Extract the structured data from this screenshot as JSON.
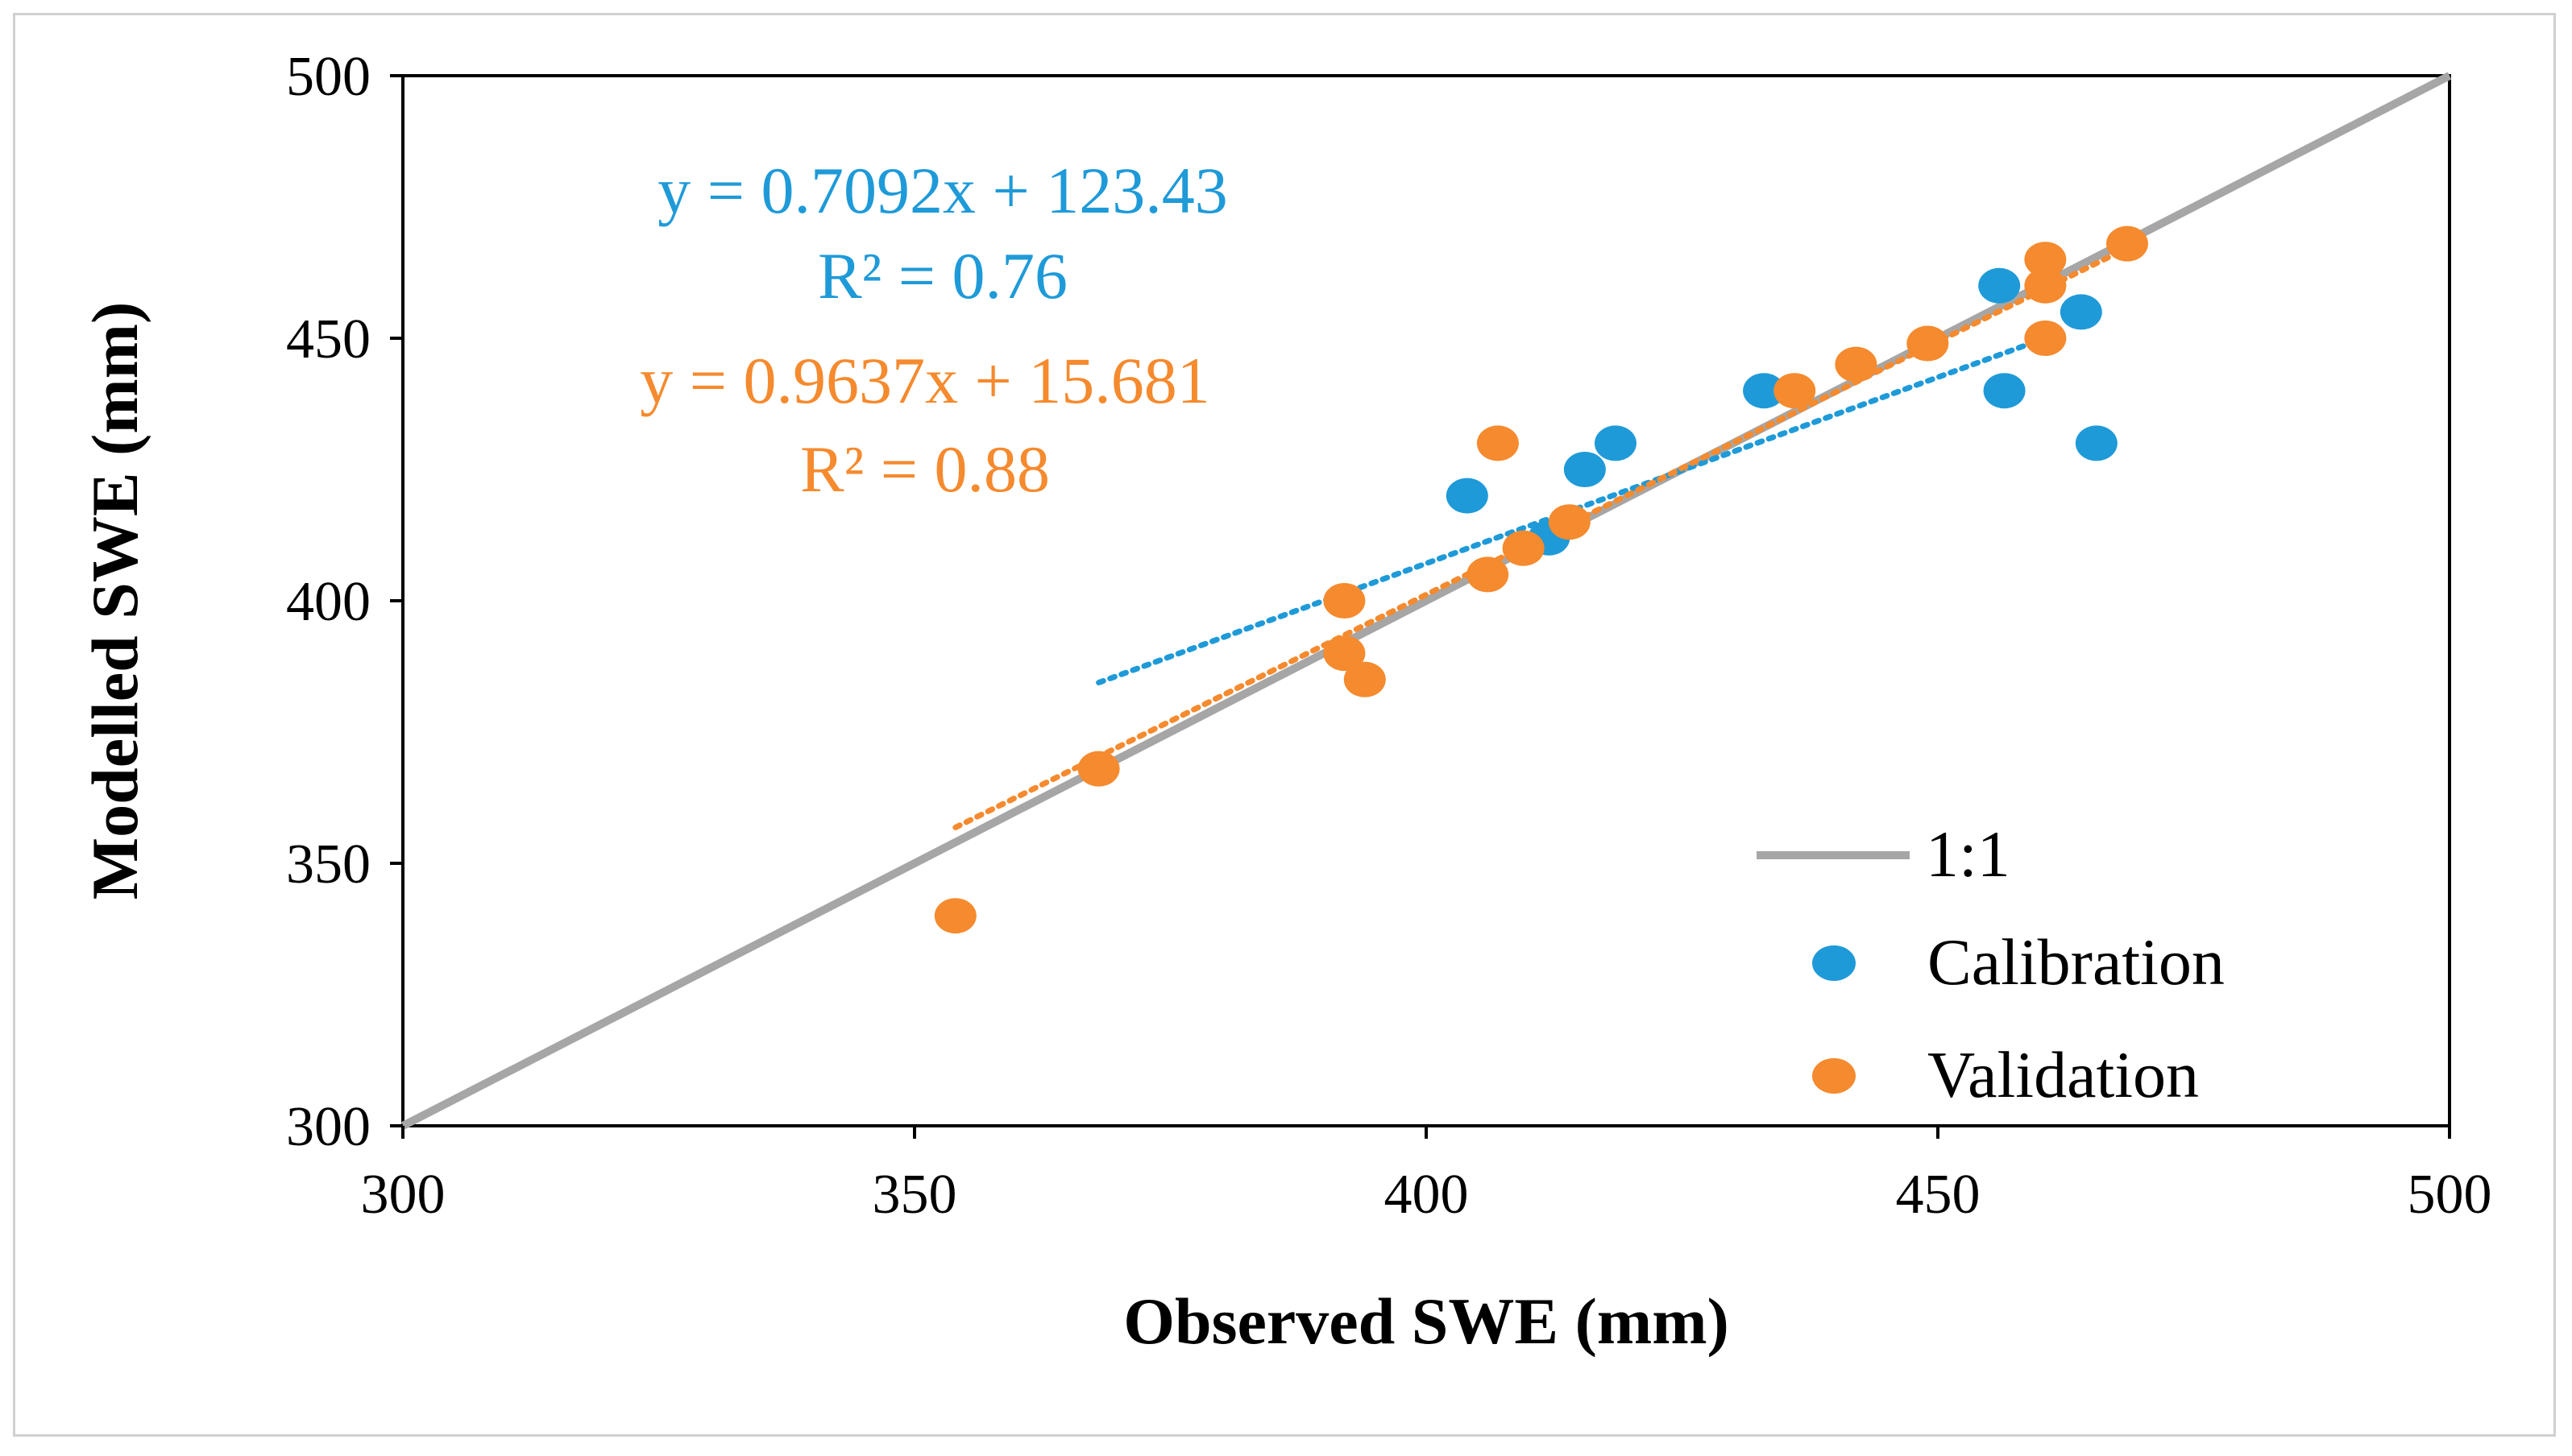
{
  "chart_data": {
    "type": "scatter",
    "xlabel": "Observed SWE (mm)",
    "ylabel": "Modelled SWE (mm)",
    "xlim": [
      300,
      500
    ],
    "ylim": [
      300,
      500
    ],
    "xticks": [
      "300",
      "350",
      "400",
      "450",
      "500"
    ],
    "yticks": [
      "300",
      "350",
      "400",
      "450",
      "500"
    ],
    "grid": false,
    "legend": {
      "placement": "bottom-right",
      "entries": [
        "1:1",
        "Calibration",
        "Validation"
      ]
    },
    "reference_line": {
      "name": "1:1",
      "x": [
        300,
        500
      ],
      "y": [
        300,
        500
      ],
      "color": "#a6a6a6"
    },
    "series": [
      {
        "name": "Calibration",
        "color": "#1f9ad8",
        "points": [
          {
            "x": 404,
            "y": 420
          },
          {
            "x": 412,
            "y": 412
          },
          {
            "x": 415.5,
            "y": 425
          },
          {
            "x": 418.5,
            "y": 430
          },
          {
            "x": 433,
            "y": 440
          },
          {
            "x": 456,
            "y": 460
          },
          {
            "x": 456.5,
            "y": 440
          },
          {
            "x": 464,
            "y": 455
          },
          {
            "x": 465.5,
            "y": 430
          }
        ],
        "trendline": {
          "equation": "y = 0.7092x + 123.43",
          "r2": "R² = 0.76",
          "slope": 0.7092,
          "intercept": 123.43,
          "x_range": [
            368,
            461
          ]
        }
      },
      {
        "name": "Validation",
        "color": "#f58a2e",
        "points": [
          {
            "x": 354,
            "y": 340
          },
          {
            "x": 368,
            "y": 368
          },
          {
            "x": 392,
            "y": 390
          },
          {
            "x": 392,
            "y": 400
          },
          {
            "x": 394,
            "y": 385
          },
          {
            "x": 406,
            "y": 405
          },
          {
            "x": 407,
            "y": 430
          },
          {
            "x": 409.5,
            "y": 410
          },
          {
            "x": 414,
            "y": 415
          },
          {
            "x": 436,
            "y": 440
          },
          {
            "x": 442,
            "y": 445
          },
          {
            "x": 449,
            "y": 449
          },
          {
            "x": 460.5,
            "y": 450
          },
          {
            "x": 460.5,
            "y": 460
          },
          {
            "x": 460.5,
            "y": 465
          },
          {
            "x": 468.5,
            "y": 468
          }
        ],
        "trendline": {
          "equation": "y = 0.9637x + 15.681",
          "r2": "R² = 0.88",
          "slope": 0.9637,
          "intercept": 15.681,
          "x_range": [
            354,
            469
          ]
        }
      }
    ]
  }
}
